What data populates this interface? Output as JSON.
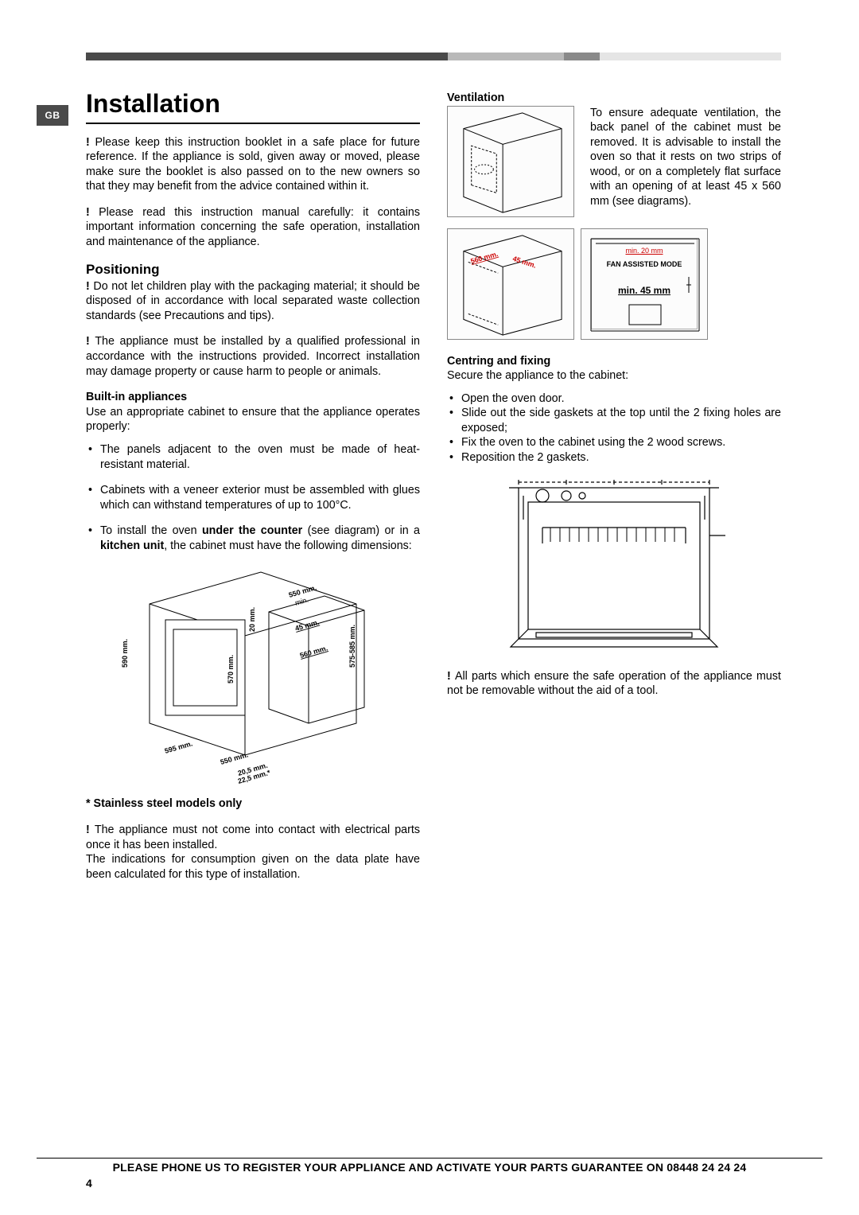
{
  "topbar": {
    "segments": [
      {
        "color": "#4a4a4a",
        "flex": 5.0
      },
      {
        "color": "#b9b9b9",
        "flex": 1.6
      },
      {
        "color": "#8a8a8a",
        "flex": 0.5
      },
      {
        "color": "#e5e5e5",
        "flex": 2.5
      }
    ]
  },
  "badge": "GB",
  "title": "Installation",
  "left": {
    "p1": "Please keep this instruction booklet in a safe place for future reference. If the appliance is sold, given away or moved, please make sure the booklet is also passed on to the new owners so that they may benefit from the advice contained within it.",
    "p2": "Please read this instruction manual carefully: it contains important information concerning the safe operation, installation and maintenance of the appliance.",
    "pos_h": "Positioning",
    "pos_p1": "Do not let children play with the packaging material; it should be disposed of in accordance with local separated waste collection standards (see Precautions and tips).",
    "pos_p2": "The appliance must be installed by a qualified professional in accordance with the instructions provided. Incorrect installation may damage property or cause harm to people or animals.",
    "bi_h": "Built-in appliances",
    "bi_p": "Use an appropriate cabinet to ensure that the appliance operates properly:",
    "b1": "The panels adjacent to the oven must be made of heat-resistant material.",
    "b2": "Cabinets with a veneer exterior must be assembled with glues which can withstand temperatures of up to 100°C.",
    "b3_pre": "To install the oven ",
    "b3_bold1": "under the counter",
    "b3_mid": " (see diagram) or in a ",
    "b3_bold2": "kitchen unit",
    "b3_post": ", the cabinet must have the following dimensions:",
    "stainless": "* Stainless steel models only",
    "elec1": "The appliance must not come into contact with electrical parts once it has been installed.",
    "elec2": "The indications for consumption given on the data plate have been calculated for this type of installation.",
    "dims": {
      "d590": "590 mm.",
      "d595": "595 mm.",
      "d550a": "550 mm.",
      "d205": "20,5 mm.",
      "d225": "22,5 mm.*",
      "d570": "570 mm.",
      "d20": "20 mm.",
      "d550min": "550 mm.",
      "min": "min.",
      "d45": "45 mm.",
      "d560": "560 mm.",
      "d575": "575-585 mm."
    }
  },
  "right": {
    "vent_h": "Ventilation",
    "vent_p": "To ensure adequate ventilation, the back panel of the cabinet must be removed. It is advisable to install the oven so that it rests on two strips of wood, or on a completely flat surface with an opening of at least 45 x 560 mm (see diagrams).",
    "dim560": "560 mm.",
    "dim45": "45 mm.",
    "fan_min20": "min. 20 mm",
    "fan_mode": "FAN ASSISTED MODE",
    "fan_min45": "min. 45 mm",
    "cf_h": "Centring and fixing",
    "cf_p": "Secure the appliance to the cabinet:",
    "cf_b1": "Open the oven door.",
    "cf_b2": "Slide out the side gaskets at the top until the 2 fixing holes are exposed;",
    "cf_b3": "Fix the oven to the cabinet using the 2 wood screws.",
    "cf_b4": "Reposition the 2 gaskets.",
    "safe": "All parts which ensure the safe operation of the appliance must not be removable without the aid of a tool."
  },
  "footer": "PLEASE PHONE US TO REGISTER YOUR APPLIANCE AND ACTIVATE YOUR PARTS GUARANTEE ON 08448 24 24 24",
  "page_num": "4"
}
